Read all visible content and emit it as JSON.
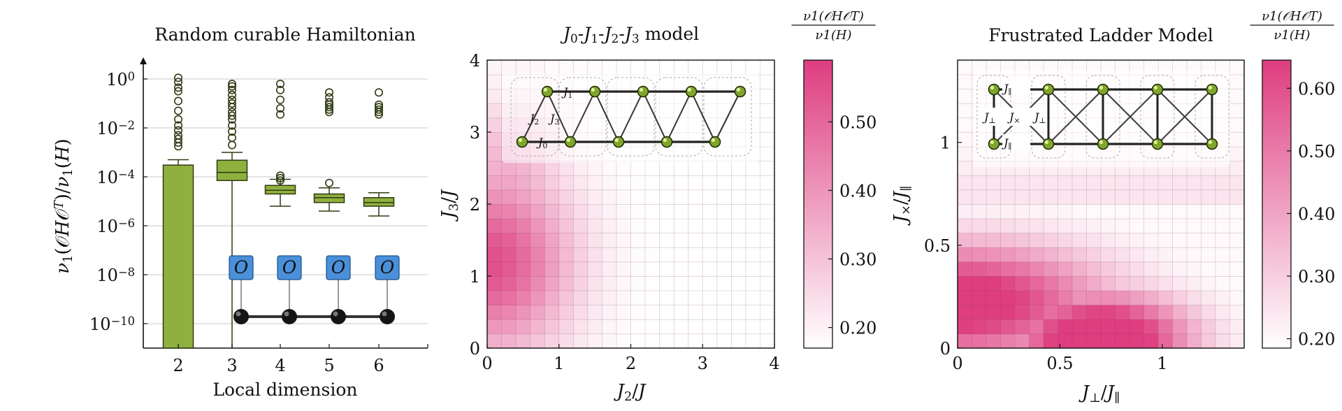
{
  "chart_data": [
    {
      "type": "box",
      "title": "Random curable Hamiltonian",
      "xlabel": "Local dimension",
      "ylabel": "ν1(𝒪H𝒪T)/ν1(H)",
      "yscale": "log",
      "ylim_log10": [
        -11,
        0.6
      ],
      "yticks": [
        {
          "exp": 0,
          "label_base": "10",
          "label_exp": "0"
        },
        {
          "exp": -2,
          "label_base": "10",
          "label_exp": "−2"
        },
        {
          "exp": -4,
          "label_base": "10",
          "label_exp": "−4"
        },
        {
          "exp": -6,
          "label_base": "10",
          "label_exp": "−6"
        },
        {
          "exp": -8,
          "label_base": "10",
          "label_exp": "−8"
        },
        {
          "exp": -10,
          "label_base": "10",
          "label_exp": "−10"
        }
      ],
      "categories": [
        "2",
        "3",
        "4",
        "5",
        "6"
      ],
      "boxes": [
        {
          "category": "2",
          "whislo": -11,
          "q1": -11,
          "med": -11,
          "q3": -3.52,
          "whishi": -3.3,
          "fliers": [
            0.05,
            -0.12,
            -0.35,
            -0.5,
            -0.9,
            -1.3,
            -1.65,
            -1.9,
            -2.1,
            -2.3,
            -2.45,
            -2.6,
            -2.75
          ]
        },
        {
          "category": "3",
          "whislo": -11,
          "q1": -4.15,
          "med": -3.82,
          "q3": -3.32,
          "whishi": -3.0,
          "fliers": [
            -0.2,
            -0.3,
            -0.45,
            -0.65,
            -0.85,
            -1.0,
            -1.15,
            -1.35,
            -1.5,
            -1.65,
            -1.9,
            -2.15,
            -2.4,
            -2.7
          ]
        },
        {
          "category": "4",
          "whislo": -5.2,
          "q1": -4.7,
          "med": -4.55,
          "q3": -4.35,
          "whishi": -4.1,
          "fliers": [
            -0.2,
            -0.45,
            -0.85,
            -1.2,
            -1.45,
            -3.95,
            -4.05,
            -4.15
          ]
        },
        {
          "category": "5",
          "whislo": -5.4,
          "q1": -5.05,
          "med": -4.85,
          "q3": -4.7,
          "whishi": -4.45,
          "fliers": [
            -0.55,
            -0.75,
            -0.95,
            -1.05,
            -1.15,
            -1.25,
            -1.35,
            -4.25
          ]
        },
        {
          "category": "6",
          "whislo": -5.6,
          "q1": -5.2,
          "med": -5.05,
          "q3": -4.85,
          "whishi": -4.65,
          "fliers": [
            -0.55,
            -1.05,
            -1.15,
            -1.25,
            -1.35,
            -1.45
          ]
        }
      ],
      "inset_label": "O",
      "colors": {
        "box": "#8fb03e",
        "box_edge": "#2f3a12",
        "median": "#2f3a12"
      }
    },
    {
      "type": "heatmap",
      "title": "J0-J1-J2-J3 model",
      "title_parts": [
        "J",
        "0",
        "-",
        "J",
        "1",
        "-",
        "J",
        "2",
        "-",
        "J",
        "3",
        " model"
      ],
      "xlabel_parts": [
        "J",
        "2",
        "/",
        "J"
      ],
      "ylabel_parts": [
        "J",
        "3",
        "/",
        "J"
      ],
      "xlim": [
        0,
        4
      ],
      "ylim": [
        0,
        4
      ],
      "xticks": [
        "0",
        "1",
        "2",
        "3",
        "4"
      ],
      "yticks": [
        "0",
        "1",
        "2",
        "3",
        "4"
      ],
      "grid_n": 20,
      "colorbar_label": {
        "numerator": "ν1(𝒪H𝒪T)",
        "denominator": "ν1(H)"
      },
      "colorbar_range": [
        0.17,
        0.59
      ],
      "colorbar_ticks": [
        "0.20",
        "0.30",
        "0.40",
        "0.50"
      ],
      "inset_labels": [
        "J1",
        "J2",
        "J3",
        "J0"
      ],
      "colormap": [
        "#ffffff",
        "#de3d80"
      ]
    },
    {
      "type": "heatmap",
      "title": "Frustrated Ladder Model",
      "xlabel_parts": [
        "J",
        "⊥",
        "/",
        "J",
        "∥"
      ],
      "ylabel_parts": [
        "J",
        "×",
        "/",
        "J",
        "∥"
      ],
      "xlim": [
        0,
        1.4
      ],
      "ylim": [
        0,
        1.4
      ],
      "xticks": [
        {
          "v": 0,
          "label": "0"
        },
        {
          "v": 0.5,
          "label": "0.5"
        },
        {
          "v": 1,
          "label": "1"
        }
      ],
      "yticks": [
        {
          "v": 0,
          "label": "0"
        },
        {
          "v": 0.5,
          "label": "0.5"
        },
        {
          "v": 1,
          "label": "1"
        }
      ],
      "grid_n": 20,
      "colorbar_label": {
        "numerator": "ν1(𝒪H𝒪T)",
        "denominator": "ν1(H)"
      },
      "colorbar_range": [
        0.185,
        0.645
      ],
      "colorbar_ticks": [
        "0.20",
        "0.30",
        "0.40",
        "0.50",
        "0.60"
      ],
      "inset_labels": [
        "J∥",
        "J⊥",
        "J×",
        "J⊥",
        "J∥"
      ],
      "colormap": [
        "#ffffff",
        "#de3d80"
      ]
    }
  ]
}
